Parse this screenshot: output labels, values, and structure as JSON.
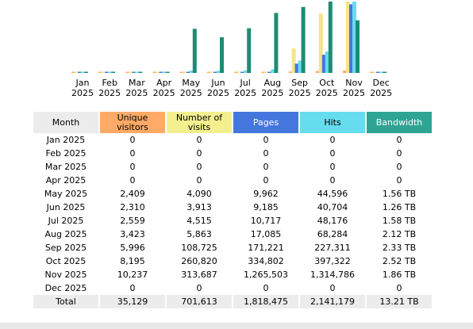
{
  "chart_data": {
    "type": "bar",
    "categories": [
      "Jan 2025",
      "Feb 2025",
      "Mar 2025",
      "Apr 2025",
      "May 2025",
      "Jun 2025",
      "Jul 2025",
      "Aug 2025",
      "Sep 2025",
      "Oct 2025",
      "Nov 2025",
      "Dec 2025"
    ],
    "category_lines": [
      [
        "Jan",
        "2025"
      ],
      [
        "Feb",
        "2025"
      ],
      [
        "Mar",
        "2025"
      ],
      [
        "Apr",
        "2025"
      ],
      [
        "May",
        "2025"
      ],
      [
        "Jun",
        "2025"
      ],
      [
        "Jul",
        "2025"
      ],
      [
        "Aug",
        "2025"
      ],
      [
        "Sep",
        "2025"
      ],
      [
        "Oct",
        "2025"
      ],
      [
        "Nov",
        "2025"
      ],
      [
        "Dec",
        "2025"
      ]
    ],
    "series": [
      {
        "key": "unique",
        "color": "#ffaa66",
        "values": [
          0,
          0,
          0,
          0,
          2409,
          2310,
          2559,
          3423,
          5996,
          8195,
          10237,
          0
        ]
      },
      {
        "key": "visits",
        "color": "#f4e48c",
        "values": [
          0,
          0,
          0,
          0,
          4090,
          3913,
          4515,
          5863,
          108725,
          260820,
          313687,
          0
        ]
      },
      {
        "key": "pages",
        "color": "#4477dd",
        "values": [
          0,
          0,
          0,
          0,
          9962,
          9185,
          10717,
          17085,
          171221,
          334802,
          1265503,
          0
        ]
      },
      {
        "key": "hits",
        "color": "#66ddee",
        "values": [
          0,
          0,
          0,
          0,
          44596,
          40704,
          48176,
          68284,
          227311,
          397322,
          1314786,
          0
        ]
      },
      {
        "key": "bandwidth_tb",
        "color": "#1e8c74",
        "values": [
          0,
          0,
          0,
          0,
          1.56,
          1.26,
          1.58,
          2.12,
          2.33,
          2.52,
          1.86,
          0
        ]
      }
    ],
    "grid": false
  },
  "table": {
    "headers": {
      "month": "Month",
      "unique": [
        "Unique",
        "visitors"
      ],
      "visits": [
        "Number of",
        "visits"
      ],
      "pages": "Pages",
      "hits": "Hits",
      "bandwidth": "Bandwidth"
    },
    "rows": [
      {
        "month": "Jan 2025",
        "unique": "0",
        "visits": "0",
        "pages": "0",
        "hits": "0",
        "bandwidth": "0"
      },
      {
        "month": "Feb 2025",
        "unique": "0",
        "visits": "0",
        "pages": "0",
        "hits": "0",
        "bandwidth": "0"
      },
      {
        "month": "Mar 2025",
        "unique": "0",
        "visits": "0",
        "pages": "0",
        "hits": "0",
        "bandwidth": "0"
      },
      {
        "month": "Apr 2025",
        "unique": "0",
        "visits": "0",
        "pages": "0",
        "hits": "0",
        "bandwidth": "0"
      },
      {
        "month": "May 2025",
        "unique": "2,409",
        "visits": "4,090",
        "pages": "9,962",
        "hits": "44,596",
        "bandwidth": "1.56 TB"
      },
      {
        "month": "Jun 2025",
        "unique": "2,310",
        "visits": "3,913",
        "pages": "9,185",
        "hits": "40,704",
        "bandwidth": "1.26 TB"
      },
      {
        "month": "Jul 2025",
        "unique": "2,559",
        "visits": "4,515",
        "pages": "10,717",
        "hits": "48,176",
        "bandwidth": "1.58 TB"
      },
      {
        "month": "Aug 2025",
        "unique": "3,423",
        "visits": "5,863",
        "pages": "17,085",
        "hits": "68,284",
        "bandwidth": "2.12 TB"
      },
      {
        "month": "Sep 2025",
        "unique": "5,996",
        "visits": "108,725",
        "pages": "171,221",
        "hits": "227,311",
        "bandwidth": "2.33 TB"
      },
      {
        "month": "Oct 2025",
        "unique": "8,195",
        "visits": "260,820",
        "pages": "334,802",
        "hits": "397,322",
        "bandwidth": "2.52 TB"
      },
      {
        "month": "Nov 2025",
        "unique": "10,237",
        "visits": "313,687",
        "pages": "1,265,503",
        "hits": "1,314,786",
        "bandwidth": "1.86 TB"
      },
      {
        "month": "Dec 2025",
        "unique": "0",
        "visits": "0",
        "pages": "0",
        "hits": "0",
        "bandwidth": "0"
      }
    ],
    "total": {
      "month": "Total",
      "unique": "35,129",
      "visits": "701,613",
      "pages": "1,818,475",
      "hits": "2,141,179",
      "bandwidth": "13.21 TB"
    }
  }
}
